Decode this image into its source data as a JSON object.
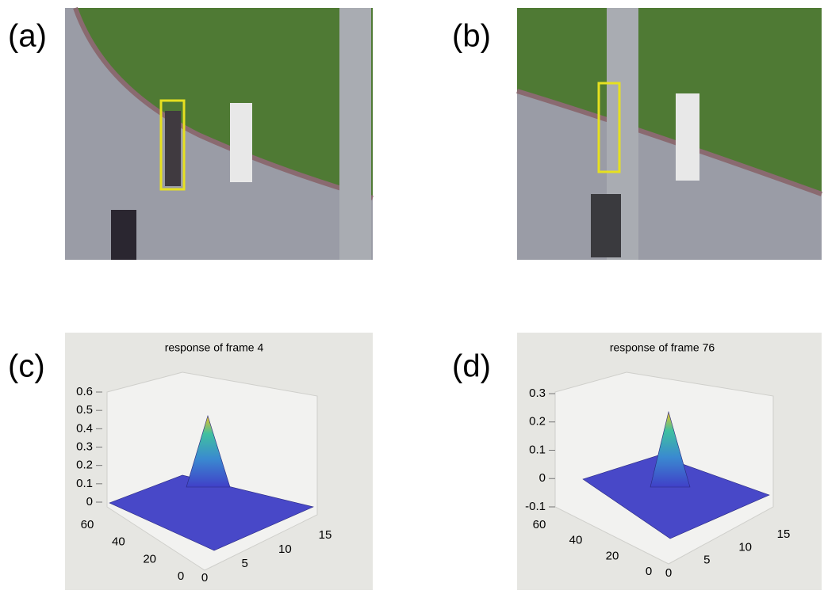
{
  "panels": [
    {
      "label": "(a)"
    },
    {
      "label": "(b)"
    },
    {
      "label": "(c)",
      "title": "response of frame 4",
      "zlim": [
        0,
        0.6
      ],
      "zticks": [
        0,
        0.1,
        0.2,
        0.3,
        0.4,
        0.5,
        0.6
      ],
      "ylim": [
        0,
        60
      ],
      "yticks": [
        0,
        20,
        40,
        60
      ],
      "xlim": [
        0,
        15
      ],
      "xticks": [
        0,
        5,
        10,
        15
      ]
    },
    {
      "label": "(d)",
      "title": "response of frame 76",
      "zlim": [
        -0.1,
        0.3
      ],
      "zticks": [
        -0.1,
        0,
        0.1,
        0.2,
        0.3
      ],
      "ylim": [
        0,
        60
      ],
      "yticks": [
        0,
        20,
        40,
        60
      ],
      "xlim": [
        0,
        15
      ],
      "xticks": [
        0,
        5,
        10,
        15
      ]
    }
  ]
}
